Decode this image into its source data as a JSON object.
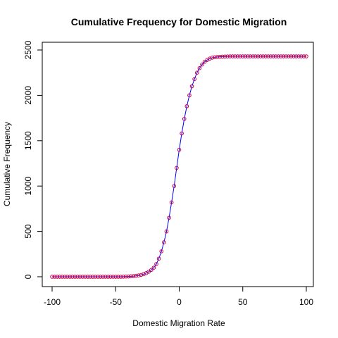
{
  "chart_data": {
    "type": "line",
    "title": "Cumulative Frequency for  Domestic  Migration",
    "xlabel": "Domestic  Migration Rate",
    "ylabel": "Cumulative Frequency",
    "xlim": [
      -100,
      100
    ],
    "ylim": [
      0,
      2500
    ],
    "x_ticks": [
      -100,
      -50,
      0,
      50,
      100
    ],
    "y_ticks": [
      0,
      500,
      1000,
      1500,
      2000,
      2500
    ],
    "grid": false,
    "colors": {
      "line": "#0000ff",
      "points": "#cc0044"
    },
    "series": [
      {
        "x": [
          -100,
          -98,
          -96,
          -94,
          -92,
          -90,
          -88,
          -86,
          -84,
          -82,
          -80,
          -78,
          -76,
          -74,
          -72,
          -70,
          -68,
          -66,
          -64,
          -62,
          -60,
          -58,
          -56,
          -54,
          -52,
          -50,
          -48,
          -46,
          -44,
          -42,
          -40,
          -38,
          -36,
          -34,
          -32,
          -30,
          -28,
          -26,
          -24,
          -22,
          -20,
          -18,
          -16,
          -14,
          -12,
          -10,
          -8,
          -6,
          -4,
          -2,
          0,
          2,
          4,
          6,
          8,
          10,
          12,
          14,
          16,
          18,
          20,
          22,
          24,
          26,
          28,
          30,
          32,
          34,
          36,
          38,
          40,
          42,
          44,
          46,
          48,
          50,
          52,
          54,
          56,
          58,
          60,
          62,
          64,
          66,
          68,
          70,
          72,
          74,
          76,
          78,
          80,
          82,
          84,
          86,
          88,
          90,
          92,
          94,
          96,
          98,
          100
        ],
        "values": [
          0,
          0,
          0,
          0,
          0,
          0,
          0,
          0,
          0,
          0,
          0,
          0,
          0,
          0,
          0,
          0,
          0,
          0,
          0,
          0,
          0,
          0,
          0,
          0,
          0,
          0,
          0,
          0,
          1,
          2,
          3,
          5,
          7,
          10,
          14,
          20,
          28,
          40,
          55,
          75,
          100,
          140,
          200,
          280,
          380,
          500,
          650,
          820,
          1000,
          1200,
          1400,
          1580,
          1740,
          1880,
          2000,
          2100,
          2180,
          2250,
          2300,
          2340,
          2370,
          2390,
          2405,
          2415,
          2420,
          2423,
          2425,
          2427,
          2428,
          2429,
          2430,
          2430,
          2430,
          2430,
          2430,
          2430,
          2430,
          2430,
          2430,
          2430,
          2430,
          2430,
          2430,
          2430,
          2430,
          2430,
          2430,
          2430,
          2430,
          2430,
          2430,
          2430,
          2430,
          2430,
          2430,
          2430,
          2430,
          2430,
          2430,
          2430,
          2430
        ]
      }
    ]
  }
}
